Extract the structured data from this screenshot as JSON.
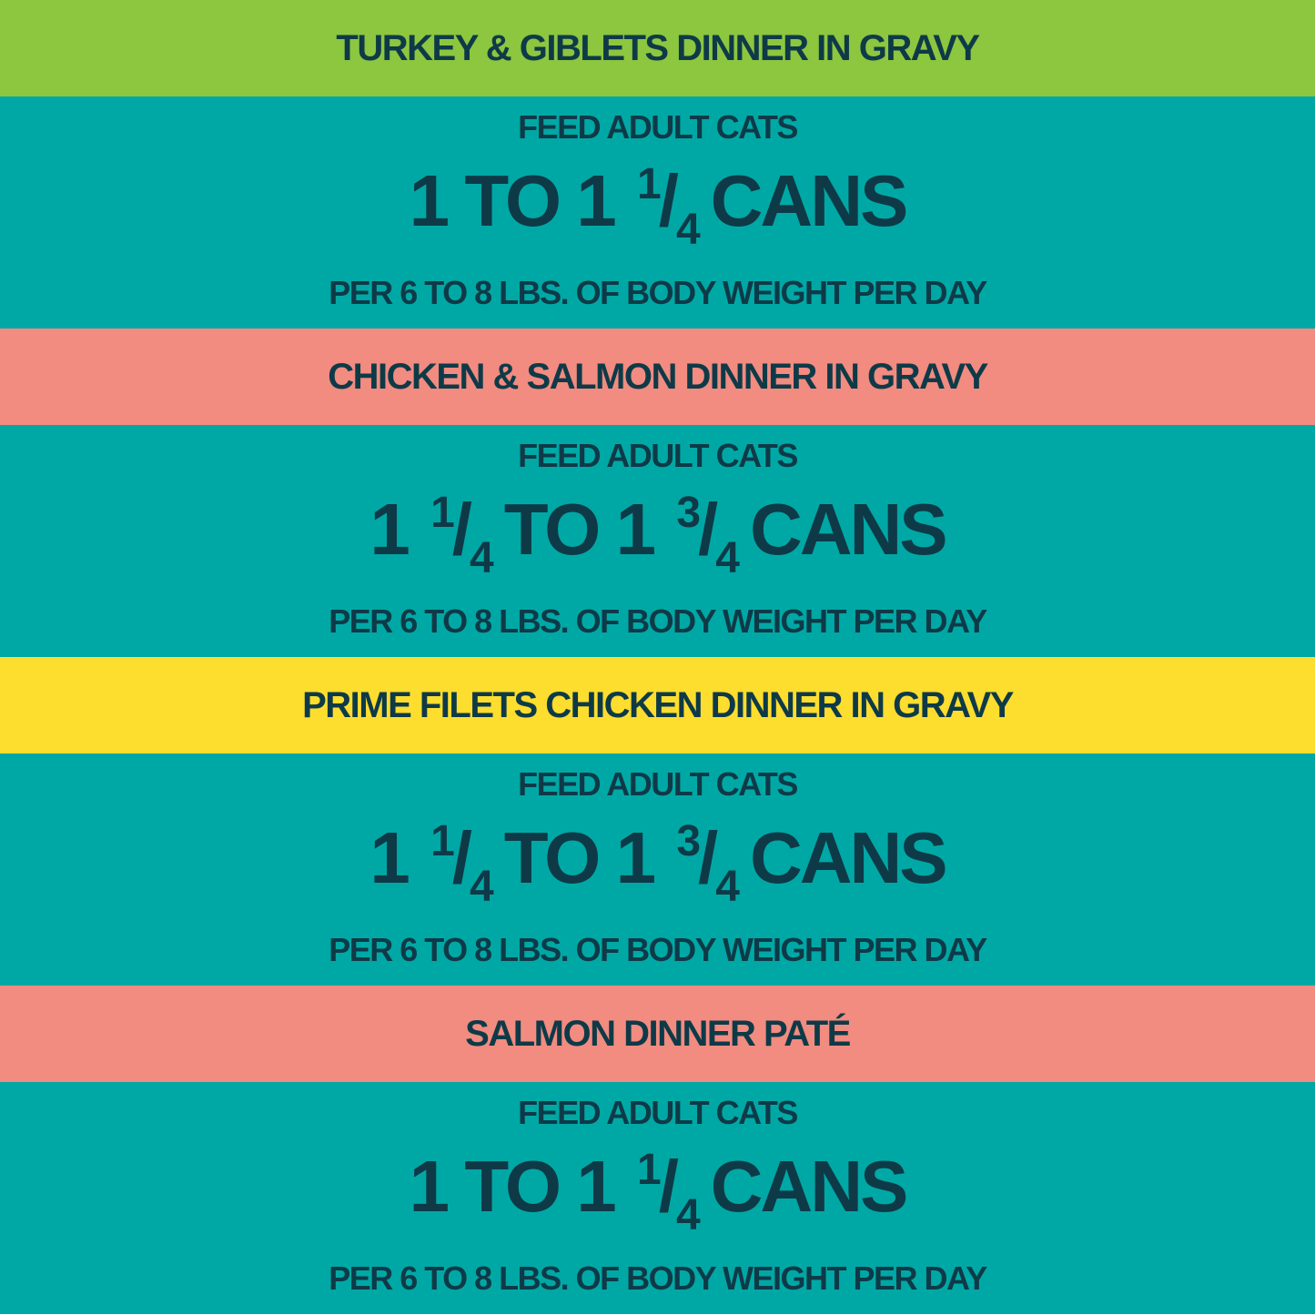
{
  "colors": {
    "green": "#8dc63f",
    "teal": "#00a8a5",
    "pink": "#f28b80",
    "yellow": "#fddd2e",
    "text": "#0e3a48"
  },
  "sections": [
    {
      "title": "TURKEY & GIBLETS DINNER IN GRAVY",
      "title_bg": "#8dc63f",
      "feed": "FEED ADULT CATS",
      "amount": [
        {
          "text": "1 TO 1"
        },
        {
          "num": "1",
          "den": "4"
        },
        {
          "text": "CANS"
        }
      ],
      "per": "PER 6 TO 8 LBS. OF BODY WEIGHT PER DAY"
    },
    {
      "title": "CHICKEN & SALMON DINNER IN GRAVY",
      "title_bg": "#f28b80",
      "feed": "FEED ADULT CATS",
      "amount": [
        {
          "text": "1"
        },
        {
          "num": "1",
          "den": "4"
        },
        {
          "text": "TO 1"
        },
        {
          "num": "3",
          "den": "4"
        },
        {
          "text": "CANS"
        }
      ],
      "per": "PER 6 TO 8 LBS. OF BODY WEIGHT PER DAY"
    },
    {
      "title": "PRIME FILETS CHICKEN DINNER IN GRAVY",
      "title_bg": "#fddd2e",
      "feed": "FEED ADULT CATS",
      "amount": [
        {
          "text": "1"
        },
        {
          "num": "1",
          "den": "4"
        },
        {
          "text": "TO 1"
        },
        {
          "num": "3",
          "den": "4"
        },
        {
          "text": "CANS"
        }
      ],
      "per": "PER 6 TO 8 LBS. OF BODY WEIGHT PER DAY"
    },
    {
      "title": "SALMON DINNER PATÉ",
      "title_bg": "#f28b80",
      "feed": "FEED ADULT CATS",
      "amount": [
        {
          "text": "1 TO 1"
        },
        {
          "num": "1",
          "den": "4"
        },
        {
          "text": "CANS"
        }
      ],
      "per": "PER 6 TO 8 LBS. OF BODY WEIGHT PER DAY"
    }
  ]
}
